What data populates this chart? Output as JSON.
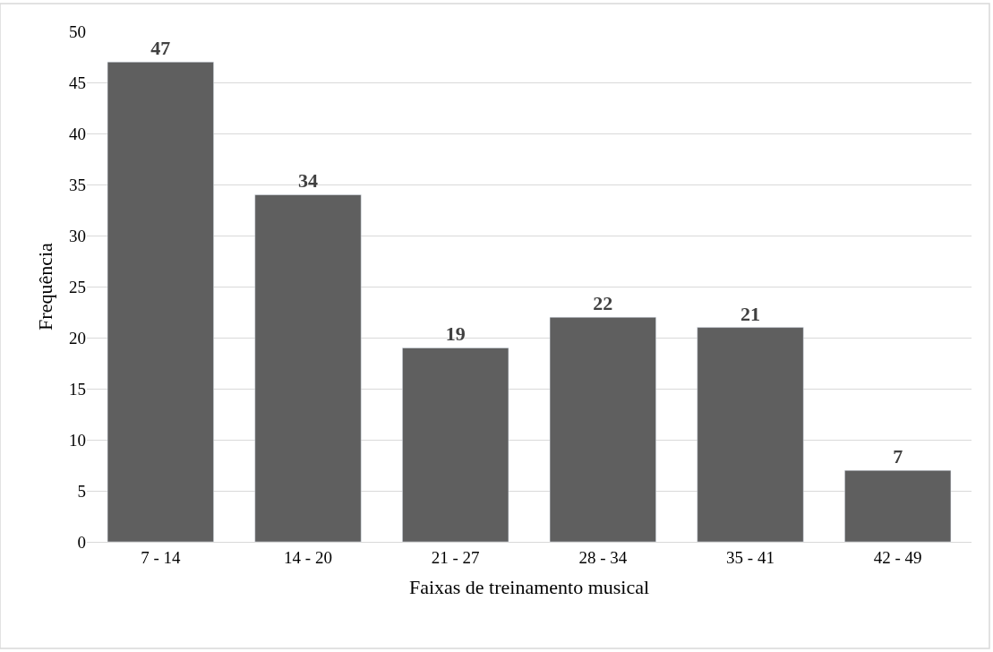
{
  "chart_data": {
    "type": "bar",
    "xlabel": "Faixas de treinamento musical",
    "ylabel": "Frequência",
    "categories": [
      "7 - 14",
      "14 - 20",
      "21 - 27",
      "28 - 34",
      "35 - 41",
      "42 - 49"
    ],
    "values": [
      47,
      34,
      19,
      22,
      21,
      7
    ],
    "color": "#5f5f5f",
    "ylim": [
      0,
      50
    ],
    "yticks": [
      0,
      5,
      10,
      15,
      20,
      25,
      30,
      35,
      40,
      45,
      50
    ],
    "grid": "y",
    "data_labels": true,
    "legend": false
  }
}
